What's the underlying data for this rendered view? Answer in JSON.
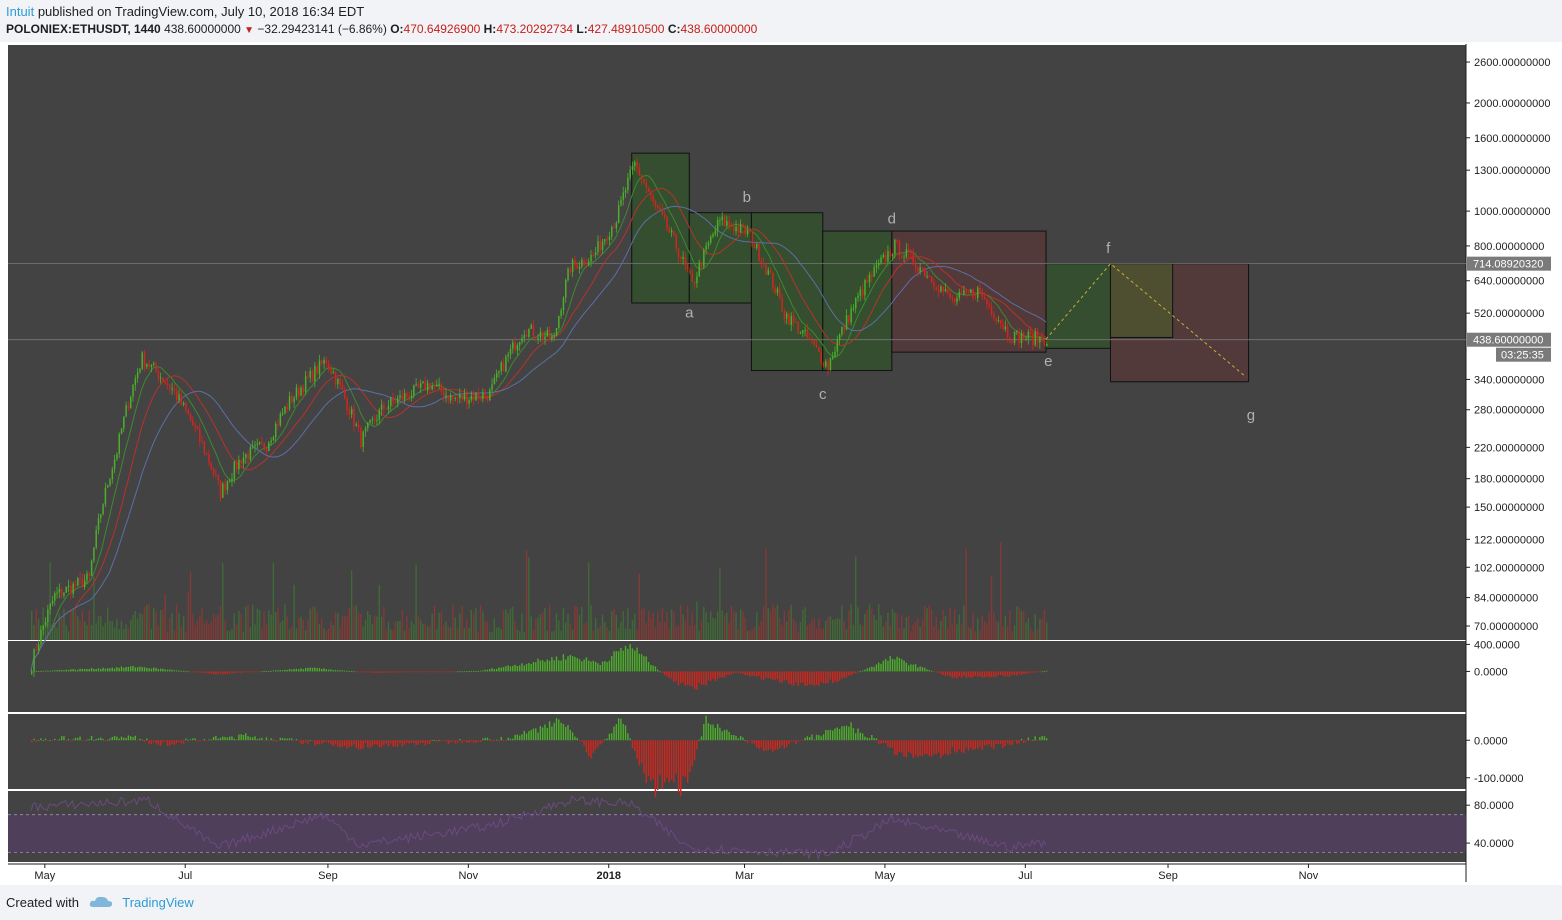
{
  "header": {
    "author": "Intuit",
    "published_text": "published on TradingView.com, July 10, 2018 16:34 EDT",
    "symbol": "POLONIEX:ETHUSDT, 1440",
    "last": "438.60000000",
    "change": "−32.29423141 (−6.86%)",
    "o_label": "O:",
    "o_value": "470.64926900",
    "h_label": "H:",
    "h_value": "473.20292734",
    "l_label": "L:",
    "l_value": "427.48910500",
    "c_label": "C:",
    "c_value": "438.60000000"
  },
  "footer": {
    "created_with": "Created with",
    "brand": "TradingView"
  },
  "colors": {
    "panel_bg": "#434343",
    "up": "#4caf2a",
    "down": "#d2261d",
    "ma_green": "#3d8a2c",
    "ma_red": "#b8322a",
    "ma_blue": "#5b6fa8",
    "box_green": "#33502d",
    "box_red": "#54393a",
    "box_yellow": "#4e4e30",
    "path_dash": "#c9b13a",
    "rsi": "#5a3d6e",
    "axis_text": "#1e1e1e"
  },
  "chart_data": {
    "type": "candlestick",
    "symbol": "POLONIEX:ETHUSDT",
    "timeframe": "1440",
    "scale": "log",
    "ylim": [
      64,
      2900
    ],
    "y_ticks": [
      "2600.00000000",
      "2000.00000000",
      "1600.00000000",
      "1300.00000000",
      "1000.00000000",
      "800.00000000",
      "640.00000000",
      "520.00000000",
      "340.00000000",
      "280.00000000",
      "220.00000000",
      "180.00000000",
      "150.00000000",
      "122.00000000",
      "102.00000000",
      "84.00000000",
      "70.00000000"
    ],
    "x_ticks": [
      "May",
      "Jul",
      "Sep",
      "Nov",
      "2018",
      "Mar",
      "May",
      "Jul",
      "Sep",
      "Nov"
    ],
    "price_anchors": [
      {
        "date": "2017-04-25",
        "value": 55
      },
      {
        "date": "2017-05-05",
        "value": 85
      },
      {
        "date": "2017-05-20",
        "value": 95
      },
      {
        "date": "2017-06-01",
        "value": 215
      },
      {
        "date": "2017-06-12",
        "value": 390
      },
      {
        "date": "2017-06-25",
        "value": 320
      },
      {
        "date": "2017-07-16",
        "value": 165
      },
      {
        "date": "2017-07-25",
        "value": 205
      },
      {
        "date": "2017-08-05",
        "value": 225
      },
      {
        "date": "2017-08-15",
        "value": 295
      },
      {
        "date": "2017-08-31",
        "value": 385
      },
      {
        "date": "2017-09-15",
        "value": 230
      },
      {
        "date": "2017-09-25",
        "value": 285
      },
      {
        "date": "2017-10-15",
        "value": 330
      },
      {
        "date": "2017-10-25",
        "value": 300
      },
      {
        "date": "2017-11-10",
        "value": 310
      },
      {
        "date": "2017-11-25",
        "value": 470
      },
      {
        "date": "2017-12-08",
        "value": 440
      },
      {
        "date": "2017-12-15",
        "value": 700
      },
      {
        "date": "2017-12-25",
        "value": 750
      },
      {
        "date": "2018-01-04",
        "value": 950
      },
      {
        "date": "2018-01-12",
        "value": 1350
      },
      {
        "date": "2018-01-20",
        "value": 1050
      },
      {
        "date": "2018-02-06",
        "value": 620
      },
      {
        "date": "2018-02-18",
        "value": 940
      },
      {
        "date": "2018-03-02",
        "value": 870
      },
      {
        "date": "2018-03-18",
        "value": 520
      },
      {
        "date": "2018-04-06",
        "value": 370
      },
      {
        "date": "2018-04-22",
        "value": 620
      },
      {
        "date": "2018-05-05",
        "value": 800
      },
      {
        "date": "2018-05-18",
        "value": 680
      },
      {
        "date": "2018-05-30",
        "value": 560
      },
      {
        "date": "2018-06-10",
        "value": 600
      },
      {
        "date": "2018-06-24",
        "value": 450
      },
      {
        "date": "2018-07-10",
        "value": 440
      }
    ],
    "last_price": 438.6,
    "last_price_label": "438.60000000",
    "countdown": "03:25:35",
    "level_price": 714.0892032,
    "level_label": "714.08920320",
    "wave_boxes": [
      {
        "label": "a",
        "start": "2018-01-11",
        "end": "2018-02-05",
        "high": 1450,
        "low": 555,
        "color": "green"
      },
      {
        "label": "b",
        "start": "2018-02-05",
        "end": "2018-03-04",
        "high": 990,
        "low": 555,
        "color": "green"
      },
      {
        "label": "c",
        "start": "2018-03-04",
        "end": "2018-04-04",
        "high": 990,
        "low": 360,
        "color": "green"
      },
      {
        "label": "d",
        "start": "2018-04-04",
        "end": "2018-05-04",
        "high": 880,
        "low": 360,
        "color": "green"
      },
      {
        "label": "e",
        "start": "2018-05-04",
        "end": "2018-07-10",
        "high": 880,
        "low": 405,
        "color": "red"
      },
      {
        "label": "f",
        "start": "2018-07-10",
        "end": "2018-08-07",
        "high": 714,
        "low": 415,
        "color": "green"
      },
      {
        "label": "g",
        "start": "2018-08-07",
        "end": "2018-10-06",
        "high": 714,
        "low": 335,
        "color": "red"
      }
    ],
    "overlap_box": {
      "start": "2018-08-07",
      "end": "2018-09-03",
      "high": 714,
      "low": 445
    },
    "wave_labels": [
      {
        "label": "a",
        "date": "2018-02-05",
        "value": 505
      },
      {
        "label": "b",
        "date": "2018-03-02",
        "value": 1060
      },
      {
        "label": "c",
        "date": "2018-04-04",
        "value": 300
      },
      {
        "label": "d",
        "date": "2018-05-04",
        "value": 925
      },
      {
        "label": "e",
        "date": "2018-07-11",
        "value": 370
      },
      {
        "label": "f",
        "date": "2018-08-06",
        "value": 765
      },
      {
        "label": "g",
        "date": "2018-10-07",
        "value": 262
      }
    ],
    "projection": [
      {
        "date": "2018-07-10",
        "value": 440
      },
      {
        "date": "2018-08-07",
        "value": 714
      },
      {
        "date": "2018-10-05",
        "value": 345
      }
    ],
    "macd_hist": {
      "y_ticks": [
        "400.0000",
        "0.0000"
      ],
      "ylim": [
        -600,
        450
      ],
      "anchors": [
        {
          "date": "2017-04-25",
          "value": 2
        },
        {
          "date": "2017-06-10",
          "value": 70
        },
        {
          "date": "2017-07-15",
          "value": -40
        },
        {
          "date": "2017-08-25",
          "value": 50
        },
        {
          "date": "2017-09-20",
          "value": -20
        },
        {
          "date": "2017-11-05",
          "value": 5
        },
        {
          "date": "2017-12-15",
          "value": 230
        },
        {
          "date": "2017-12-28",
          "value": 120
        },
        {
          "date": "2018-01-10",
          "value": 390
        },
        {
          "date": "2018-01-25",
          "value": -60
        },
        {
          "date": "2018-02-05",
          "value": -260
        },
        {
          "date": "2018-02-25",
          "value": -20
        },
        {
          "date": "2018-03-25",
          "value": -210
        },
        {
          "date": "2018-04-10",
          "value": -140
        },
        {
          "date": "2018-05-04",
          "value": 200
        },
        {
          "date": "2018-05-30",
          "value": -90
        },
        {
          "date": "2018-06-25",
          "value": -60
        },
        {
          "date": "2018-07-10",
          "value": 10
        }
      ]
    },
    "momentum": {
      "y_ticks": [
        "0.0000",
        "-100.0000"
      ],
      "ylim": [
        -130,
        70
      ],
      "anchors": [
        {
          "date": "2017-04-25",
          "value": 2
        },
        {
          "date": "2017-06-08",
          "value": 8
        },
        {
          "date": "2017-06-20",
          "value": -10
        },
        {
          "date": "2017-07-25",
          "value": 12
        },
        {
          "date": "2017-09-12",
          "value": -18
        },
        {
          "date": "2017-11-20",
          "value": 6
        },
        {
          "date": "2017-12-12",
          "value": 55
        },
        {
          "date": "2017-12-24",
          "value": -45
        },
        {
          "date": "2018-01-06",
          "value": 60
        },
        {
          "date": "2018-01-18",
          "value": -120
        },
        {
          "date": "2018-02-03",
          "value": -115
        },
        {
          "date": "2018-02-12",
          "value": 50
        },
        {
          "date": "2018-03-10",
          "value": -30
        },
        {
          "date": "2018-04-15",
          "value": 40
        },
        {
          "date": "2018-05-10",
          "value": -45
        },
        {
          "date": "2018-06-10",
          "value": -25
        },
        {
          "date": "2018-07-10",
          "value": 10
        }
      ]
    },
    "rsi": {
      "y_ticks": [
        "80.0000",
        "40.0000"
      ],
      "ylim": [
        20,
        95
      ],
      "bands": [
        70,
        30
      ],
      "anchors": [
        {
          "date": "2017-04-25",
          "value": 78
        },
        {
          "date": "2017-06-15",
          "value": 85
        },
        {
          "date": "2017-07-15",
          "value": 35
        },
        {
          "date": "2017-08-30",
          "value": 70
        },
        {
          "date": "2017-09-15",
          "value": 38
        },
        {
          "date": "2017-11-10",
          "value": 58
        },
        {
          "date": "2017-12-15",
          "value": 85
        },
        {
          "date": "2018-01-10",
          "value": 82
        },
        {
          "date": "2018-02-05",
          "value": 35
        },
        {
          "date": "2018-04-06",
          "value": 28
        },
        {
          "date": "2018-05-04",
          "value": 65
        },
        {
          "date": "2018-06-25",
          "value": 35
        },
        {
          "date": "2018-07-10",
          "value": 42
        }
      ]
    }
  }
}
